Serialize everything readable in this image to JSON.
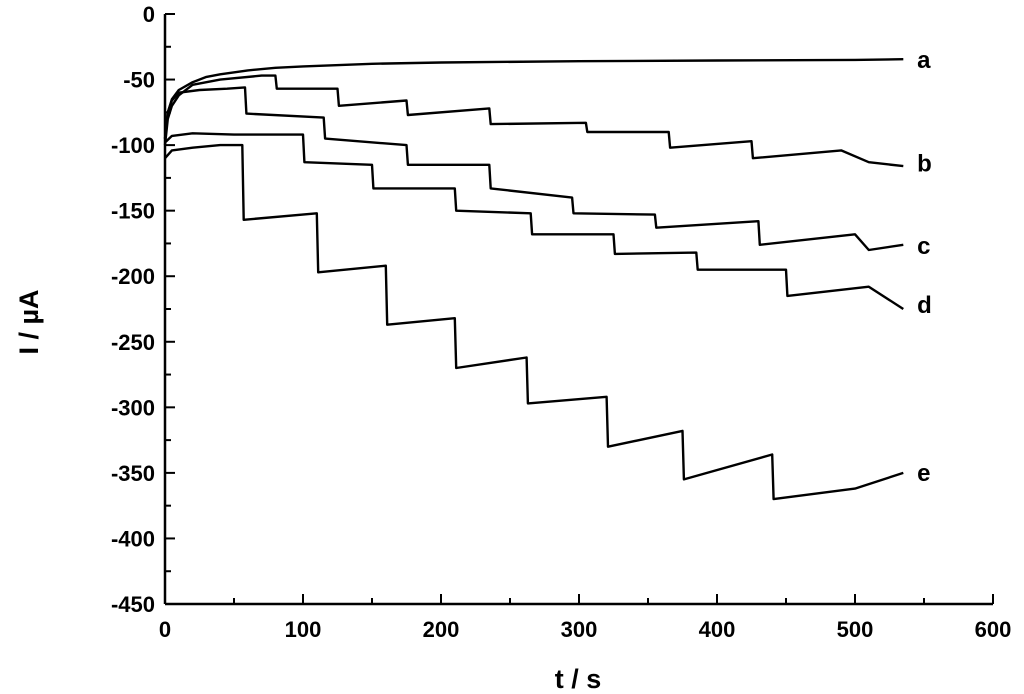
{
  "chart_data": {
    "type": "line",
    "title": "",
    "xlabel": "t / s",
    "ylabel": "I / µA",
    "xlim": [
      0,
      600
    ],
    "ylim": [
      -450,
      0
    ],
    "xticks": [
      0,
      100,
      200,
      300,
      400,
      500,
      600
    ],
    "yticks": [
      0,
      -50,
      -100,
      -150,
      -200,
      -250,
      -300,
      -350,
      -400,
      -450
    ],
    "x_tick_labels": [
      "0",
      "100",
      "200",
      "300",
      "400",
      "500",
      "600"
    ],
    "y_tick_labels": [
      "0",
      "-50",
      "-100",
      "-150",
      "-200",
      "-250",
      "-300",
      "-350",
      "-400",
      "-450"
    ],
    "x_minor_step": 50,
    "y_minor_step": 25,
    "grid": false,
    "legend": "none",
    "series": [
      {
        "name": "a",
        "x": [
          0,
          2,
          5,
          10,
          20,
          30,
          40,
          60,
          80,
          100,
          150,
          200,
          300,
          400,
          500,
          535
        ],
        "y": [
          -95,
          -75,
          -65,
          -58,
          -52,
          -48,
          -46,
          -43,
          -41,
          -40,
          -38,
          -37,
          -36,
          -35.5,
          -35,
          -34.5
        ]
      },
      {
        "name": "b",
        "x": [
          0,
          2,
          5,
          10,
          20,
          40,
          70,
          80,
          81,
          125,
          126,
          175,
          176,
          235,
          236,
          305,
          306,
          365,
          366,
          425,
          426,
          490,
          510,
          535
        ],
        "y": [
          -100,
          -80,
          -70,
          -62,
          -54,
          -50,
          -47,
          -47,
          -57,
          -57,
          -70,
          -66,
          -77,
          -72,
          -84,
          -83,
          -90,
          -90,
          -102,
          -97,
          -110,
          -104,
          -113,
          -116
        ]
      },
      {
        "name": "c",
        "x": [
          0,
          2,
          5,
          10,
          25,
          45,
          58,
          59,
          115,
          116,
          175,
          176,
          235,
          236,
          295,
          296,
          355,
          356,
          430,
          431,
          500,
          510,
          535
        ],
        "y": [
          -95,
          -75,
          -66,
          -60,
          -58,
          -57,
          -56,
          -76,
          -79,
          -95,
          -100,
          -115,
          -115,
          -133,
          -140,
          -152,
          -153,
          -163,
          -158,
          -176,
          -168,
          -180,
          -176
        ]
      },
      {
        "name": "d",
        "x": [
          0,
          5,
          20,
          50,
          100,
          101,
          150,
          151,
          210,
          211,
          265,
          266,
          325,
          326,
          385,
          386,
          450,
          451,
          510,
          535
        ],
        "y": [
          -98,
          -93,
          -91,
          -92,
          -92,
          -113,
          -115,
          -133,
          -133,
          -150,
          -152,
          -168,
          -168,
          -183,
          -182,
          -195,
          -195,
          -215,
          -208,
          -225
        ]
      },
      {
        "name": "e",
        "x": [
          0,
          5,
          20,
          40,
          56,
          57,
          110,
          111,
          160,
          161,
          210,
          211,
          262,
          263,
          320,
          321,
          375,
          376,
          440,
          441,
          500,
          535
        ],
        "y": [
          -110,
          -104,
          -102,
          -100,
          -100,
          -157,
          -152,
          -197,
          -192,
          -237,
          -232,
          -270,
          -262,
          -297,
          -292,
          -330,
          -318,
          -355,
          -336,
          -370,
          -362,
          -350
        ]
      }
    ],
    "series_labels": [
      {
        "text": "a",
        "x": 545,
        "y": -35
      },
      {
        "text": "b",
        "x": 545,
        "y": -114
      },
      {
        "text": "c",
        "x": 545,
        "y": -177
      },
      {
        "text": "d",
        "x": 545,
        "y": -222
      },
      {
        "text": "e",
        "x": 545,
        "y": -350
      }
    ]
  }
}
